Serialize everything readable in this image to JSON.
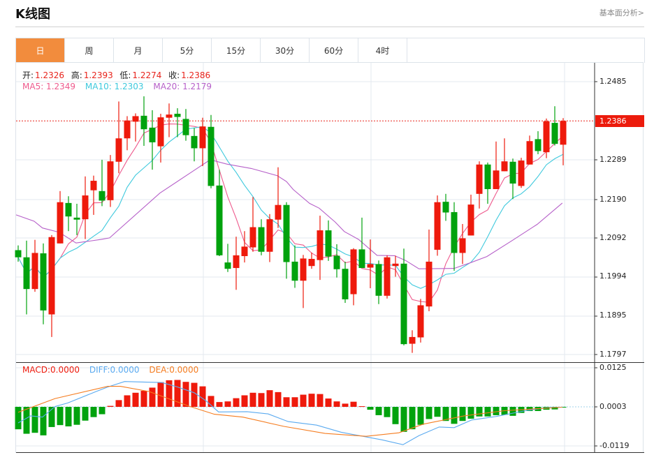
{
  "header": {
    "title": "K线图",
    "link": "基本面分析>"
  },
  "tabs": [
    {
      "label": "日",
      "active": true
    },
    {
      "label": "周"
    },
    {
      "label": "月"
    },
    {
      "label": "5分"
    },
    {
      "label": "15分"
    },
    {
      "label": "30分"
    },
    {
      "label": "60分"
    },
    {
      "label": "4时"
    }
  ],
  "ohlc_legend": {
    "open_label": "开:",
    "open": "1.2326",
    "high_label": "高:",
    "high": "1.2393",
    "low_label": "低:",
    "low": "1.2274",
    "close_label": "收:",
    "close": "1.2386"
  },
  "ma_legend": {
    "ma5": "MA5: 1.2349",
    "ma10": "MA10: 1.2303",
    "ma20": "MA20: 1.2179"
  },
  "macd_legend": {
    "macd": "MACD:0.0000",
    "diff": "DIFF:0.0000",
    "dea": "DEA:0.0000"
  },
  "colors": {
    "up": "#ee1a0c",
    "down": "#01a20d",
    "ma5": "#ee5a8d",
    "ma10": "#3ec9dd",
    "ma20": "#b660c9",
    "diff": "#5aaaf0",
    "dea": "#f57c1f",
    "accent": "#f28c3d"
  },
  "chart_data": {
    "type": "candlestick",
    "price_axis": {
      "ticks": [
        "1.2485",
        "1.2289",
        "1.2190",
        "1.2092",
        "1.1994",
        "1.1895",
        "1.1797"
      ],
      "range": [
        1.1797,
        1.2485
      ]
    },
    "last_price": "1.2386",
    "last_price_value": 1.2386,
    "ohlc": [
      [
        1.206,
        1.2072,
        1.2031,
        1.2042
      ],
      [
        1.2042,
        1.2084,
        1.1898,
        1.1962
      ],
      [
        1.1962,
        1.2086,
        1.1955,
        1.2053
      ],
      [
        1.2052,
        1.2077,
        1.1873,
        1.1908
      ],
      [
        1.1898,
        1.2098,
        1.1841,
        1.2093
      ],
      [
        1.2077,
        1.2209,
        1.2077,
        1.2181
      ],
      [
        1.2179,
        1.2196,
        1.2108,
        1.2145
      ],
      [
        1.2142,
        1.2177,
        1.2098,
        1.2137
      ],
      [
        1.2138,
        1.2246,
        1.2088,
        1.2198
      ],
      [
        1.2211,
        1.2248,
        1.2149,
        1.2235
      ],
      [
        1.2209,
        1.2288,
        1.2171,
        1.2185
      ],
      [
        1.2186,
        1.23,
        1.2169,
        1.2284
      ],
      [
        1.2283,
        1.2435,
        1.2254,
        1.2342
      ],
      [
        1.2342,
        1.2398,
        1.2312,
        1.2387
      ],
      [
        1.2384,
        1.2405,
        1.2334,
        1.2398
      ],
      [
        1.2399,
        1.2448,
        1.2323,
        1.2365
      ],
      [
        1.2369,
        1.2413,
        1.2263,
        1.2332
      ],
      [
        1.2322,
        1.2404,
        1.2281,
        1.2395
      ],
      [
        1.2394,
        1.243,
        1.2345,
        1.2402
      ],
      [
        1.2404,
        1.2418,
        1.2345,
        1.2396
      ],
      [
        1.2391,
        1.2416,
        1.2336,
        1.235
      ],
      [
        1.2348,
        1.2368,
        1.2284,
        1.2317
      ],
      [
        1.2317,
        1.2394,
        1.2272,
        1.2372
      ],
      [
        1.2371,
        1.2401,
        1.2216,
        1.2222
      ],
      [
        1.2223,
        1.2263,
        1.2045,
        1.2047
      ],
      [
        1.2029,
        1.2076,
        1.2005,
        1.2013
      ],
      [
        1.2015,
        1.2094,
        1.196,
        1.2047
      ],
      [
        1.2045,
        1.2108,
        1.2029,
        1.2069
      ],
      [
        1.2067,
        1.2194,
        1.2056,
        1.2118
      ],
      [
        1.2118,
        1.2138,
        1.2047,
        1.2056
      ],
      [
        1.2056,
        1.2151,
        1.203,
        1.2138
      ],
      [
        1.2137,
        1.2269,
        1.2116,
        1.2174
      ],
      [
        1.2174,
        1.2181,
        1.1988,
        1.203
      ],
      [
        1.2031,
        1.2072,
        1.1965,
        1.1983
      ],
      [
        1.1983,
        1.2048,
        1.1914,
        1.2039
      ],
      [
        1.202,
        1.2054,
        1.2013,
        1.2038
      ],
      [
        1.2035,
        1.2147,
        1.1985,
        1.211
      ],
      [
        1.211,
        1.2135,
        1.2033,
        1.2044
      ],
      [
        1.2046,
        1.2075,
        1.1991,
        1.2012
      ],
      [
        1.2013,
        1.2031,
        1.1927,
        1.1936
      ],
      [
        1.1949,
        1.2065,
        1.1921,
        1.2062
      ],
      [
        1.2062,
        1.2142,
        1.2015,
        1.2015
      ],
      [
        1.2016,
        1.2087,
        1.1964,
        1.2025
      ],
      [
        1.2025,
        1.2034,
        1.1924,
        1.1945
      ],
      [
        1.1945,
        1.2047,
        1.1938,
        1.2042
      ],
      [
        1.202,
        1.2046,
        1.1993,
        1.2026
      ],
      [
        1.2026,
        1.2064,
        1.182,
        1.1823
      ],
      [
        1.1824,
        1.1858,
        1.1801,
        1.1841
      ],
      [
        1.184,
        1.1937,
        1.1827,
        1.1921
      ],
      [
        1.1918,
        1.2112,
        1.1906,
        1.2031
      ],
      [
        1.2061,
        1.2198,
        1.2046,
        1.2181
      ],
      [
        1.2182,
        1.2202,
        1.2134,
        1.2155
      ],
      [
        1.2156,
        1.2181,
        1.2008,
        1.2053
      ],
      [
        1.2053,
        1.2126,
        1.2025,
        1.209
      ],
      [
        1.2097,
        1.22,
        1.2097,
        1.2175
      ],
      [
        1.2202,
        1.2284,
        1.2165,
        1.2276
      ],
      [
        1.2276,
        1.2281,
        1.2177,
        1.2214
      ],
      [
        1.2214,
        1.2334,
        1.2214,
        1.2261
      ],
      [
        1.2259,
        1.2342,
        1.2259,
        1.2284
      ],
      [
        1.2283,
        1.2291,
        1.2189,
        1.2228
      ],
      [
        1.2222,
        1.2293,
        1.2217,
        1.2286
      ],
      [
        1.2276,
        1.2349,
        1.2276,
        1.2335
      ],
      [
        1.234,
        1.236,
        1.2302,
        1.231
      ],
      [
        1.2307,
        1.2392,
        1.2292,
        1.2385
      ],
      [
        1.2381,
        1.2423,
        1.2324,
        1.2328
      ],
      [
        1.2326,
        1.2393,
        1.2274,
        1.2386
      ]
    ],
    "ma20_points": [
      [
        0.75,
        1.2149
      ],
      [
        2.9,
        1.2133
      ],
      [
        3.9,
        1.2116
      ],
      [
        5.9,
        1.2105
      ],
      [
        7.9,
        1.2078
      ],
      [
        10.9,
        1.2087
      ],
      [
        11.9,
        1.2091
      ],
      [
        17.9,
        1.2204
      ],
      [
        21.9,
        1.226
      ],
      [
        23.9,
        1.2288
      ],
      [
        25.9,
        1.2277
      ],
      [
        28.8,
        1.2266
      ],
      [
        31.9,
        1.2248
      ],
      [
        33,
        1.2233
      ],
      [
        33.8,
        1.2213
      ],
      [
        35.75,
        1.2178
      ],
      [
        36.9,
        1.2166
      ],
      [
        38.8,
        1.2131
      ],
      [
        39.9,
        1.2107
      ],
      [
        41.6,
        1.2087
      ],
      [
        43.8,
        1.2047
      ],
      [
        45.9,
        1.2046
      ],
      [
        47.2,
        1.2034
      ],
      [
        48.8,
        1.2013
      ],
      [
        53,
        1.2014
      ],
      [
        54.9,
        1.2028
      ],
      [
        56.9,
        1.2044
      ],
      [
        59.9,
        1.2084
      ],
      [
        62.9,
        1.2125
      ],
      [
        65.9,
        1.2179
      ]
    ],
    "macd_axis": {
      "ticks": [
        "0.0125",
        "0.0003",
        "-0.0119"
      ],
      "range": [
        -0.0119,
        0.0125
      ],
      "zero": 0.0003
    },
    "macd_hist": [
      -0.007,
      -0.0084,
      -0.0081,
      -0.0089,
      -0.0063,
      -0.0057,
      -0.0061,
      -0.0056,
      -0.0043,
      -0.0032,
      -0.0023,
      0.0003,
      0.0021,
      0.0036,
      0.0044,
      0.005,
      0.006,
      0.0077,
      0.0083,
      0.0084,
      0.0078,
      0.0075,
      0.0064,
      0.0034,
      0.0015,
      0.0017,
      0.0027,
      0.0036,
      0.0044,
      0.0043,
      0.0052,
      0.0046,
      0.003,
      0.003,
      0.0038,
      0.0041,
      0.004,
      0.0026,
      0.0017,
      0.001,
      0.0016,
      0.0002,
      -0.0009,
      -0.0026,
      -0.0032,
      -0.0054,
      -0.0078,
      -0.007,
      -0.0056,
      -0.0038,
      -0.0031,
      -0.0044,
      -0.0053,
      -0.0044,
      -0.0037,
      -0.003,
      -0.003,
      -0.0026,
      -0.0025,
      -0.0028,
      -0.0019,
      -0.0013,
      -0.0013,
      -0.0009,
      -0.0008,
      -0.0001
    ],
    "diff_points": [
      [
        1,
        -0.005
      ],
      [
        2.5,
        -0.0028
      ],
      [
        3.9,
        -0.0032
      ],
      [
        5.4,
        0.0001
      ],
      [
        6.9,
        0.0012
      ],
      [
        10.3,
        0.0048
      ],
      [
        11.7,
        0.0062
      ],
      [
        13.7,
        0.0079
      ],
      [
        16.6,
        0.0077
      ],
      [
        18.1,
        0.0076
      ],
      [
        20,
        0.0062
      ],
      [
        22,
        0.0044
      ],
      [
        23.4,
        0.0019
      ],
      [
        24.9,
        -0.0016
      ],
      [
        28.3,
        -0.0015
      ],
      [
        30.8,
        -0.0022
      ],
      [
        33.2,
        -0.0046
      ],
      [
        36.6,
        -0.0057
      ],
      [
        39.5,
        -0.0079
      ],
      [
        42.5,
        -0.0094
      ],
      [
        44.4,
        -0.0103
      ],
      [
        46.9,
        -0.0118
      ],
      [
        48.8,
        -0.009
      ],
      [
        51.2,
        -0.0063
      ],
      [
        53,
        -0.0065
      ],
      [
        55.1,
        -0.0041
      ],
      [
        58,
        -0.003
      ],
      [
        61.5,
        -0.0012
      ],
      [
        63.9,
        -0.0003
      ],
      [
        65.9,
        -0.0001
      ]
    ],
    "dea_points": [
      [
        1,
        -0.0017
      ],
      [
        5.4,
        0.0026
      ],
      [
        11.7,
        0.0064
      ],
      [
        13.2,
        0.0064
      ],
      [
        16.6,
        0.0048
      ],
      [
        21.5,
        0.0001
      ],
      [
        24.4,
        -0.0023
      ],
      [
        27.8,
        -0.0032
      ],
      [
        32.7,
        -0.0061
      ],
      [
        37.6,
        -0.0083
      ],
      [
        42.5,
        -0.0092
      ],
      [
        46.4,
        -0.0081
      ],
      [
        49.3,
        -0.0054
      ],
      [
        54.2,
        -0.0028
      ],
      [
        59,
        -0.0012
      ],
      [
        65.9,
        -0.0001
      ]
    ]
  }
}
